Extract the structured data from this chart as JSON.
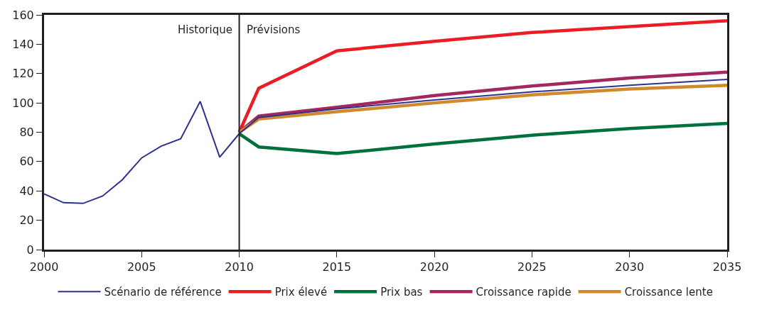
{
  "chart_data": {
    "type": "line",
    "xlim": [
      2000,
      2035
    ],
    "xticks": [
      2000,
      2005,
      2010,
      2015,
      2020,
      2025,
      2030,
      2035
    ],
    "ylim": [
      0,
      160
    ],
    "yticks": [
      0,
      20,
      40,
      60,
      80,
      100,
      120,
      140,
      160
    ],
    "grid": false,
    "legend": "bottom",
    "marker": "none",
    "line_style": "solid",
    "series": [
      {
        "name": "Scénario de référence",
        "color": "#2e3192",
        "x": [
          2000,
          2001,
          2002,
          2003,
          2004,
          2005,
          2006,
          2007,
          2008,
          2009,
          2010,
          2011,
          2015,
          2020,
          2025,
          2030,
          2035
        ],
        "values": [
          38,
          32,
          31.5,
          36.5,
          47.5,
          62.5,
          70.5,
          75.5,
          101,
          63,
          79,
          90,
          96,
          102,
          107.5,
          112,
          116
        ]
      },
      {
        "name": "Prix élevé",
        "color": "#ed1c24",
        "x": [
          2010,
          2011,
          2015,
          2020,
          2025,
          2030,
          2035
        ],
        "values": [
          80,
          110,
          135.5,
          142,
          148,
          152,
          156
        ]
      },
      {
        "name": "Prix bas",
        "color": "#00703c",
        "x": [
          2010,
          2011,
          2015,
          2020,
          2025,
          2030,
          2035
        ],
        "values": [
          79,
          70,
          65.5,
          72,
          78,
          82.5,
          86
        ]
      },
      {
        "name": "Croissance rapide",
        "color": "#a3285f",
        "x": [
          2010,
          2011,
          2015,
          2020,
          2025,
          2030,
          2035
        ],
        "values": [
          80,
          91,
          97,
          105,
          111.5,
          117,
          121
        ]
      },
      {
        "name": "Croissance lente",
        "color": "#d08a2c",
        "x": [
          2010,
          2011,
          2015,
          2020,
          2025,
          2030,
          2035
        ],
        "values": [
          80,
          89,
          94,
          100,
          105.5,
          109.5,
          112
        ]
      }
    ],
    "ref_lines": [
      {
        "axis": "x",
        "value": 2010,
        "color": "#231f20"
      }
    ],
    "annotations": [
      {
        "text": "Historique",
        "x": 2010,
        "y": 150
      },
      {
        "text": "Prévisions",
        "x": 2010,
        "y": 150
      }
    ]
  }
}
